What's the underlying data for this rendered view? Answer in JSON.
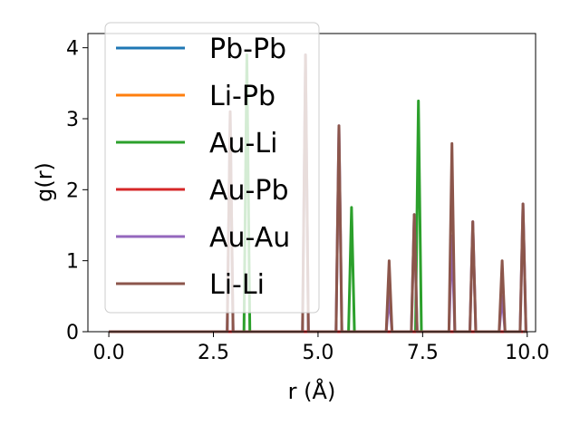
{
  "chart_data": {
    "type": "line",
    "xlabel": "r (Å)",
    "ylabel": "g(r)",
    "xlim": [
      -0.5,
      10.2
    ],
    "ylim": [
      0,
      4.2
    ],
    "xticks": [
      0.0,
      2.5,
      5.0,
      7.5,
      10.0
    ],
    "xtick_labels": [
      "0.0",
      "2.5",
      "5.0",
      "7.5",
      "10.0"
    ],
    "yticks": [
      0,
      1,
      2,
      3,
      4
    ],
    "ytick_labels": [
      "0",
      "1",
      "2",
      "3",
      "4"
    ],
    "grid": false,
    "legend_position": "top-left",
    "series": [
      {
        "name": "Pb-Pb",
        "color": "#1f77b4",
        "peaks": []
      },
      {
        "name": "Li-Pb",
        "color": "#ff7f0e",
        "peaks": []
      },
      {
        "name": "Au-Li",
        "color": "#2ca02c",
        "peaks": [
          [
            3.3,
            3.9
          ],
          [
            5.8,
            1.75
          ],
          [
            7.4,
            3.25
          ]
        ]
      },
      {
        "name": "Au-Pb",
        "color": "#d62728",
        "peaks": []
      },
      {
        "name": "Au-Au",
        "color": "#9467bd",
        "peaks": [
          [
            2.9,
            3.1
          ],
          [
            4.7,
            3.9
          ],
          [
            5.5,
            2.9
          ],
          [
            6.7,
            0.5
          ],
          [
            7.3,
            1.65
          ],
          [
            8.2,
            1.35
          ],
          [
            8.7,
            1.55
          ],
          [
            9.4,
            0.5
          ],
          [
            9.9,
            1.8
          ]
        ]
      },
      {
        "name": "Li-Li",
        "color": "#8c564b",
        "peaks": [
          [
            2.9,
            3.1
          ],
          [
            4.7,
            3.9
          ],
          [
            5.5,
            2.9
          ],
          [
            6.7,
            1.0
          ],
          [
            7.3,
            1.65
          ],
          [
            8.2,
            2.65
          ],
          [
            8.7,
            1.55
          ],
          [
            9.4,
            1.0
          ],
          [
            9.9,
            1.8
          ]
        ]
      }
    ],
    "x_range": [
      0.0,
      9.9
    ]
  }
}
